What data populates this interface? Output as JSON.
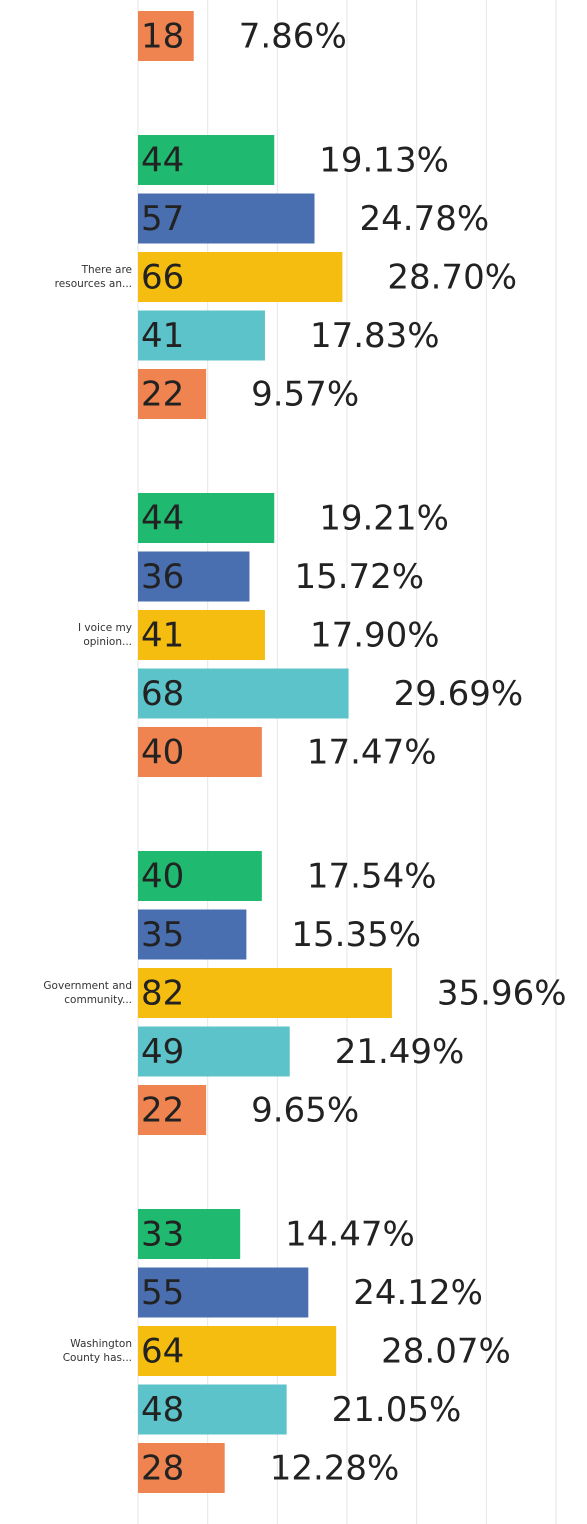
{
  "chart_data": {
    "type": "bar",
    "orientation": "horizontal",
    "categories": [
      null,
      [
        "There are",
        "resources an..."
      ],
      [
        "I voice my",
        "opinion..."
      ],
      [
        "Government and",
        "community..."
      ],
      [
        "Washington",
        "County has..."
      ]
    ],
    "series": [
      {
        "color": "#1fba6f",
        "values": [
          null,
          44,
          44,
          40,
          33
        ],
        "percent_labels": [
          null,
          "19.13%",
          "19.21%",
          "17.54%",
          "14.47%"
        ]
      },
      {
        "color": "#4a6fb0",
        "values": [
          null,
          57,
          36,
          35,
          55
        ],
        "percent_labels": [
          null,
          "24.78%",
          "15.72%",
          "15.35%",
          "24.12%"
        ]
      },
      {
        "color": "#f5bd0f",
        "values": [
          null,
          66,
          41,
          82,
          64
        ],
        "percent_labels": [
          null,
          "28.70%",
          "17.90%",
          "35.96%",
          "28.07%"
        ]
      },
      {
        "color": "#5bc3c9",
        "values": [
          null,
          41,
          68,
          49,
          48
        ],
        "percent_labels": [
          null,
          "17.83%",
          "29.69%",
          "21.49%",
          "21.05%"
        ]
      },
      {
        "color": "#f08451",
        "values": [
          18,
          22,
          40,
          22,
          28
        ],
        "percent_labels": [
          "7.86%",
          "9.57%",
          "17.47%",
          "9.65%",
          "12.28%"
        ]
      }
    ],
    "xlim": [
      0,
      145
    ],
    "xticks": [
      0,
      22.5,
      45,
      67.5,
      90,
      112.5,
      135
    ],
    "grid": true
  }
}
